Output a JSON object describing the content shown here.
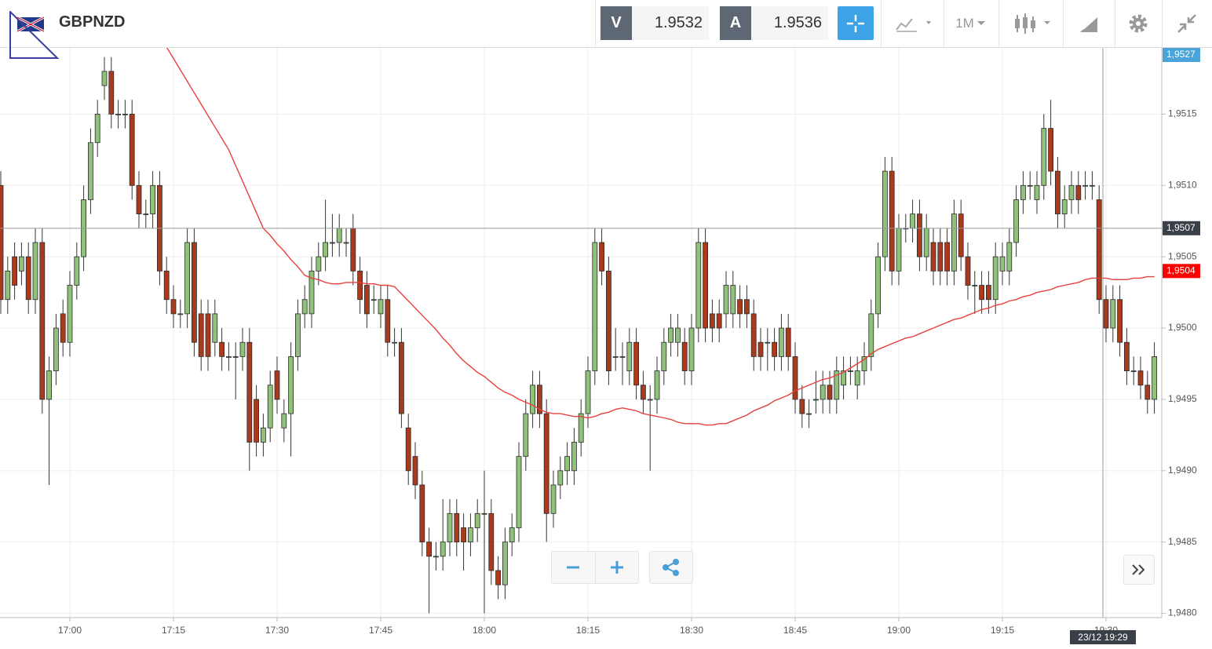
{
  "header": {
    "symbol": "GBPNZD",
    "sell_label": "V",
    "sell_price": "1.9532",
    "buy_label": "A",
    "buy_price": "1.9536",
    "timeframe": "1M"
  },
  "chart_data": {
    "type": "candlestick",
    "categories": [
      null,
      null,
      null,
      null,
      null,
      null,
      null,
      null,
      null,
      null,
      "17:00",
      null,
      null,
      null,
      null,
      null,
      null,
      null,
      null,
      null,
      null,
      null,
      null,
      null,
      null,
      "17:15",
      null,
      null,
      null,
      null,
      null,
      null,
      null,
      null,
      null,
      null,
      null,
      null,
      null,
      null,
      "17:30",
      null,
      null,
      null,
      null,
      null,
      null,
      null,
      null,
      null,
      null,
      null,
      null,
      null,
      null,
      "17:45",
      null,
      null,
      null,
      null,
      null,
      null,
      null,
      null,
      null,
      null,
      null,
      null,
      null,
      null,
      "18:00",
      null,
      null,
      null,
      null,
      null,
      null,
      null,
      null,
      null,
      null,
      null,
      null,
      null,
      null,
      "18:15",
      null,
      null,
      null,
      null,
      null,
      null,
      null,
      null,
      null,
      null,
      null,
      null,
      null,
      null,
      "18:30",
      null,
      null,
      null,
      null,
      null,
      null,
      null,
      null,
      null,
      null,
      null,
      null,
      null,
      null,
      "18:45",
      null,
      null,
      null,
      null,
      null,
      null,
      null,
      null,
      null,
      null,
      null,
      null,
      null,
      null,
      "19:00",
      null,
      null,
      null,
      null,
      null,
      null,
      null,
      null,
      null,
      null,
      null,
      null,
      null,
      null,
      "19:15",
      null,
      null,
      null,
      null,
      null,
      null,
      null,
      null,
      null,
      null,
      null,
      null,
      null,
      null,
      "19:30",
      null,
      null,
      null,
      null,
      null,
      null,
      null
    ],
    "open": [
      1.951,
      1.9502,
      1.9505,
      1.9504,
      1.9505,
      1.9502,
      1.9506,
      1.9495,
      1.9497,
      1.9501,
      1.9499,
      1.9503,
      1.9505,
      1.9509,
      1.9513,
      1.9517,
      1.9518,
      1.9515,
      1.9515,
      1.9515,
      1.951,
      1.9508,
      1.9508,
      1.951,
      1.9504,
      1.9502,
      1.9501,
      1.9501,
      1.9506,
      1.9501,
      1.9501,
      1.9499,
      1.9499,
      1.9498,
      1.9498,
      1.9498,
      1.9499,
      1.9495,
      1.9492,
      1.9493,
      1.9497,
      1.9493,
      1.9494,
      1.9498,
      1.9501,
      1.9501,
      1.9504,
      1.9505,
      1.9506,
      1.9506,
      1.9506,
      1.9507,
      1.9504,
      1.9503,
      1.9502,
      1.9501,
      1.9502,
      1.9499,
      1.9499,
      1.9493,
      1.9491,
      1.9489,
      1.9485,
      1.9484,
      1.9484,
      1.9485,
      1.9487,
      1.9486,
      1.9485,
      1.9486,
      1.9487,
      1.9487,
      1.9483,
      1.9482,
      1.9485,
      1.9486,
      1.9491,
      1.9494,
      1.9496,
      1.9494,
      1.9487,
      1.9489,
      1.949,
      1.949,
      1.9492,
      1.9494,
      1.9497,
      1.9506,
      1.9504,
      1.9498,
      1.9498,
      1.9497,
      1.9499,
      1.9496,
      1.9495,
      1.9495,
      1.9497,
      1.9499,
      1.9499,
      1.9499,
      1.9497,
      1.95,
      1.9506,
      1.9501,
      1.9501,
      1.9501,
      1.9501,
      1.9502,
      1.9502,
      1.9501,
      1.9499,
      1.9499,
      1.9499,
      1.9498,
      1.95,
      1.9498,
      1.9495,
      1.9494,
      1.9495,
      1.9495,
      1.9496,
      1.9495,
      1.9496,
      1.9497,
      1.9496,
      1.9497,
      1.9498,
      1.9501,
      1.9505,
      1.9511,
      1.9504,
      1.9507,
      1.9507,
      1.9508,
      1.9505,
      1.9506,
      1.9506,
      1.9506,
      1.9504,
      1.9508,
      1.9505,
      1.9503,
      1.9503,
      1.9503,
      1.9502,
      1.9504,
      1.9504,
      1.9506,
      1.9509,
      1.951,
      1.9509,
      1.951,
      1.9514,
      1.9511,
      1.9508,
      1.9509,
      1.951,
      1.951,
      1.951,
      1.9509,
      1.9502,
      1.95,
      1.9502,
      1.9499,
      1.9497,
      1.9497,
      1.9496,
      1.9495
    ],
    "high": [
      1.9511,
      1.9505,
      1.9506,
      1.9506,
      1.9506,
      1.9507,
      1.9507,
      1.9498,
      1.9501,
      1.9502,
      1.9504,
      1.9506,
      1.951,
      1.9514,
      1.9516,
      1.9519,
      1.9519,
      1.9516,
      1.9516,
      1.9516,
      1.9511,
      1.9509,
      1.9511,
      1.9511,
      1.9505,
      1.9503,
      1.9502,
      1.9507,
      1.9507,
      1.9502,
      1.9502,
      1.9502,
      1.95,
      1.9499,
      1.9499,
      1.95,
      1.95,
      1.9496,
      1.9494,
      1.9497,
      1.9498,
      1.9495,
      1.9499,
      1.9502,
      1.9503,
      1.9505,
      1.9506,
      1.9509,
      1.9508,
      1.9508,
      1.9507,
      1.9508,
      1.9505,
      1.9504,
      1.9503,
      1.9503,
      1.9503,
      1.95,
      1.95,
      1.9494,
      1.9492,
      1.949,
      1.9486,
      1.9485,
      1.9488,
      1.9488,
      1.9488,
      1.9487,
      1.9487,
      1.9488,
      1.949,
      1.9488,
      1.9484,
      1.9486,
      1.9487,
      1.9492,
      1.9495,
      1.9497,
      1.9497,
      1.9495,
      1.949,
      1.9491,
      1.9492,
      1.9493,
      1.9495,
      1.9498,
      1.9507,
      1.9507,
      1.9505,
      1.95,
      1.9499,
      1.95,
      1.95,
      1.9497,
      1.9496,
      1.9498,
      1.95,
      1.9501,
      1.9501,
      1.95,
      1.9501,
      1.9507,
      1.9507,
      1.9502,
      1.9502,
      1.9504,
      1.9504,
      1.9503,
      1.9503,
      1.9502,
      1.95,
      1.95,
      1.95,
      1.9501,
      1.9501,
      1.9499,
      1.9496,
      1.9495,
      1.9497,
      1.9497,
      1.9497,
      1.9498,
      1.9498,
      1.9498,
      1.9498,
      1.9499,
      1.9502,
      1.9506,
      1.9512,
      1.9512,
      1.9508,
      1.9508,
      1.9509,
      1.9509,
      1.9508,
      1.9507,
      1.9507,
      1.9507,
      1.9509,
      1.9509,
      1.9506,
      1.9504,
      1.9504,
      1.9504,
      1.9506,
      1.9506,
      1.9507,
      1.951,
      1.9511,
      1.9511,
      1.9511,
      1.9515,
      1.9516,
      1.9512,
      1.951,
      1.9511,
      1.9511,
      1.9511,
      1.9511,
      1.951,
      1.9503,
      1.9503,
      1.9503,
      1.95,
      1.9498,
      1.9498,
      1.9497,
      1.9499
    ],
    "low": [
      1.9501,
      1.9501,
      1.9502,
      1.9503,
      1.9501,
      1.9501,
      1.9494,
      1.9489,
      1.9496,
      1.9498,
      1.9498,
      1.9502,
      1.9504,
      1.9508,
      1.9512,
      1.9516,
      1.9514,
      1.9514,
      1.9514,
      1.9509,
      1.9507,
      1.9507,
      1.9507,
      1.9503,
      1.9501,
      1.95,
      1.95,
      1.95,
      1.9498,
      1.9497,
      1.9497,
      1.9498,
      1.9497,
      1.9497,
      1.9495,
      1.9497,
      1.949,
      1.9491,
      1.9491,
      1.9492,
      1.9494,
      1.9492,
      1.9491,
      1.9497,
      1.95,
      1.95,
      1.9503,
      1.9504,
      1.9505,
      1.9505,
      1.9505,
      1.9503,
      1.9501,
      1.95,
      1.9501,
      1.95,
      1.9498,
      1.9498,
      1.9493,
      1.9489,
      1.9488,
      1.9484,
      1.948,
      1.9483,
      1.9483,
      1.9484,
      1.9484,
      1.9483,
      1.9484,
      1.9485,
      1.948,
      1.9482,
      1.9481,
      1.9481,
      1.9484,
      1.9485,
      1.949,
      1.9493,
      1.9493,
      1.9485,
      1.9486,
      1.9488,
      1.9489,
      1.9489,
      1.9491,
      1.9493,
      1.9496,
      1.9503,
      1.9496,
      1.9497,
      1.9496,
      1.9496,
      1.9495,
      1.9494,
      1.949,
      1.9494,
      1.9496,
      1.9498,
      1.9498,
      1.9496,
      1.9496,
      1.9499,
      1.9499,
      1.9499,
      1.9499,
      1.95,
      1.95,
      1.95,
      1.95,
      1.9497,
      1.9497,
      1.9497,
      1.9497,
      1.9497,
      1.9497,
      1.9494,
      1.9493,
      1.9493,
      1.9494,
      1.9494,
      1.9494,
      1.9494,
      1.9495,
      1.9496,
      1.9495,
      1.9496,
      1.9497,
      1.95,
      1.9504,
      1.9503,
      1.9503,
      1.9506,
      1.9506,
      1.9504,
      1.9504,
      1.9503,
      1.9503,
      1.9503,
      1.9503,
      1.9504,
      1.9502,
      1.9501,
      1.9501,
      1.9501,
      1.9501,
      1.9503,
      1.9503,
      1.9505,
      1.9508,
      1.9509,
      1.9508,
      1.9509,
      1.951,
      1.9507,
      1.9507,
      1.9508,
      1.9508,
      1.9509,
      1.9509,
      1.9501,
      1.9499,
      1.9499,
      1.9498,
      1.9496,
      1.9496,
      1.9495,
      1.9494,
      1.9494
    ],
    "close": [
      1.9502,
      1.9504,
      1.9503,
      1.9505,
      1.9502,
      1.9506,
      1.9495,
      1.9497,
      1.95,
      1.9499,
      1.9503,
      1.9505,
      1.9509,
      1.9513,
      1.9515,
      1.9518,
      1.9515,
      1.9515,
      1.9515,
      1.951,
      1.9508,
      1.9508,
      1.951,
      1.9504,
      1.9502,
      1.9501,
      1.9501,
      1.9506,
      1.9499,
      1.9498,
      1.9498,
      1.9501,
      1.9498,
      1.9498,
      1.9498,
      1.9499,
      1.9492,
      1.9492,
      1.9493,
      1.9496,
      1.9495,
      1.9494,
      1.9498,
      1.9501,
      1.9502,
      1.9504,
      1.9505,
      1.9506,
      1.9506,
      1.9507,
      1.9506,
      1.9504,
      1.9502,
      1.9501,
      1.9502,
      1.9502,
      1.9499,
      1.9499,
      1.9494,
      1.949,
      1.9489,
      1.9485,
      1.9484,
      1.9484,
      1.9485,
      1.9487,
      1.9485,
      1.9485,
      1.9486,
      1.9487,
      1.9487,
      1.9483,
      1.9482,
      1.9485,
      1.9486,
      1.9491,
      1.9494,
      1.9496,
      1.9494,
      1.9487,
      1.9489,
      1.949,
      1.9491,
      1.9492,
      1.9494,
      1.9497,
      1.9506,
      1.9504,
      1.9497,
      1.9498,
      1.9498,
      1.9499,
      1.9496,
      1.9495,
      1.9495,
      1.9497,
      1.9499,
      1.95,
      1.95,
      1.9497,
      1.95,
      1.9506,
      1.95,
      1.95,
      1.95,
      1.9503,
      1.9503,
      1.9501,
      1.9501,
      1.9498,
      1.9498,
      1.9499,
      1.9498,
      1.95,
      1.9498,
      1.9495,
      1.9494,
      1.9494,
      1.9495,
      1.9496,
      1.9495,
      1.9497,
      1.9497,
      1.9497,
      1.9497,
      1.9498,
      1.9501,
      1.9505,
      1.9511,
      1.9504,
      1.9507,
      1.9507,
      1.9508,
      1.9505,
      1.9507,
      1.9504,
      1.9504,
      1.9504,
      1.9508,
      1.9505,
      1.9503,
      1.9503,
      1.9502,
      1.9502,
      1.9505,
      1.9505,
      1.9506,
      1.9509,
      1.951,
      1.951,
      1.951,
      1.9514,
      1.9511,
      1.9508,
      1.9509,
      1.951,
      1.9509,
      1.951,
      1.951,
      1.9502,
      1.95,
      1.9502,
      1.9499,
      1.9497,
      1.9497,
      1.9496,
      1.9495,
      1.9498
    ],
    "up_color": "#8fc17a",
    "down_color": "#a83a1e",
    "overlay": {
      "color": "#e8413c",
      "values": [
        null,
        null,
        null,
        null,
        null,
        null,
        null,
        null,
        null,
        null,
        null,
        null,
        null,
        null,
        null,
        null,
        null,
        null,
        null,
        null,
        null,
        null,
        null,
        null,
        1.95197,
        1.95189,
        1.95181,
        1.95173,
        1.95165,
        1.95157,
        1.95149,
        1.95141,
        1.95133,
        1.95125,
        1.95114,
        1.95103,
        1.95092,
        1.95081,
        1.9507,
        1.95065,
        1.95059,
        1.95054,
        1.95048,
        1.95043,
        1.95037,
        1.95035,
        1.95034,
        1.95032,
        1.95031,
        1.95031,
        1.95032,
        1.95032,
        1.95032,
        1.95031,
        1.95031,
        1.9503,
        1.9503,
        1.95029,
        1.95024,
        1.95019,
        1.95014,
        1.95009,
        1.95004,
        1.94999,
        1.94993,
        1.94988,
        1.94982,
        1.94977,
        1.94973,
        1.94969,
        1.94966,
        1.94962,
        1.94958,
        1.94955,
        1.94953,
        1.9495,
        1.94948,
        1.94946,
        1.94943,
        1.94941,
        1.9494,
        1.9494,
        1.94939,
        1.94938,
        1.94938,
        1.94937,
        1.94938,
        1.9494,
        1.94941,
        1.94943,
        1.94944,
        1.94943,
        1.94942,
        1.9494,
        1.94939,
        1.94938,
        1.94937,
        1.94936,
        1.94934,
        1.94933,
        1.94933,
        1.94933,
        1.94932,
        1.94932,
        1.94933,
        1.94933,
        1.94935,
        1.94937,
        1.94939,
        1.94942,
        1.94944,
        1.94946,
        1.94949,
        1.94951,
        1.94953,
        1.94956,
        1.94958,
        1.9496,
        1.94962,
        1.94964,
        1.94965,
        1.94967,
        1.94969,
        1.94972,
        1.94975,
        1.94978,
        1.94982,
        1.94985,
        1.94987,
        1.94989,
        1.94991,
        1.94993,
        1.94994,
        1.94996,
        1.94998,
        1.95,
        1.95002,
        1.95004,
        1.95006,
        1.95007,
        1.95009,
        1.95011,
        1.95013,
        1.95014,
        1.95016,
        1.95017,
        1.95019,
        1.9502,
        1.95022,
        1.95023,
        1.95025,
        1.95026,
        1.95027,
        1.95029,
        1.9503,
        1.95031,
        1.95032,
        1.95034,
        1.95035,
        1.95035,
        1.95035,
        1.95034,
        1.95034,
        1.95034,
        1.95035,
        1.95035,
        1.95036,
        1.95036
      ]
    },
    "ylim": [
      1.94797,
      1.95197
    ],
    "yticks": [
      {
        "value": 1.948,
        "label": "1,9480"
      },
      {
        "value": 1.9485,
        "label": "1,9485"
      },
      {
        "value": 1.949,
        "label": "1,9490"
      },
      {
        "value": 1.9495,
        "label": "1,9495"
      },
      {
        "value": 1.95,
        "label": "1,9500"
      },
      {
        "value": 1.9505,
        "label": "1,9505"
      },
      {
        "value": 1.951,
        "label": "1,9510"
      },
      {
        "value": 1.9515,
        "label": "1,9515"
      }
    ],
    "grid": true,
    "price_tags": [
      {
        "value": 1.9527,
        "label": "1,9527",
        "color": "#4aa3d9"
      },
      {
        "value": 1.9507,
        "label": "1,9507",
        "color": "#3b4048"
      },
      {
        "value": 1.9504,
        "label": "1,9504",
        "color": "#ff0000"
      }
    ],
    "crosshair": {
      "label": "23/12 19:29"
    }
  }
}
